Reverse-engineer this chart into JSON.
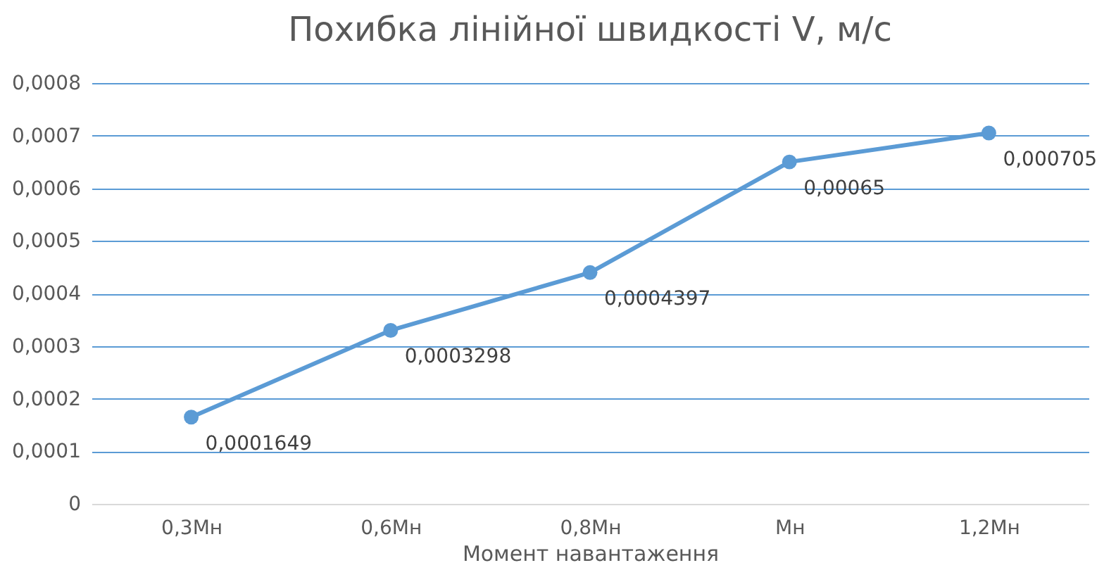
{
  "chart_data": {
    "type": "line",
    "title": "Похибка лінійної швидкості V, м/с",
    "xlabel": "Момент навантаження",
    "categories": [
      "0,3Мн",
      "0,6Мн",
      "0,8Мн",
      "Мн",
      "1,2Мн"
    ],
    "series": [
      {
        "color": "#5b9bd5",
        "values": [
          0.0001649,
          0.0003298,
          0.0004397,
          0.00065,
          0.000705
        ],
        "value_labels": [
          "0,0001649",
          "0,0003298",
          "0,0004397",
          "0,00065",
          "0,000705"
        ]
      }
    ],
    "ylim": [
      0,
      0.0008
    ],
    "yticks": [
      0,
      {
        "value": 0.0001,
        "label": "0,0001"
      },
      {
        "value": 0.0002,
        "label": "0,0002"
      },
      {
        "value": 0.0003,
        "label": "0,0003"
      },
      {
        "value": 0.0004,
        "label": "0,0004"
      },
      {
        "value": 0.0005,
        "label": "0,0005"
      },
      {
        "value": 0.0006,
        "label": "0,0006"
      },
      {
        "value": 0.0007,
        "label": "0,0007"
      },
      {
        "value": 0.0008,
        "label": "0,0008"
      }
    ],
    "grid": "y",
    "marker": "circle",
    "line_style": "solid"
  }
}
